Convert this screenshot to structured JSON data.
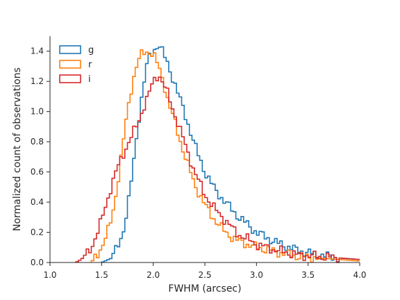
{
  "chart_data": {
    "type": "histogram-step",
    "xlabel": "FWHM (arcsec)",
    "ylabel": "Normalized count of observations",
    "xlim": [
      1.0,
      4.0
    ],
    "ylim": [
      0.0,
      1.5
    ],
    "xticks": [
      "1.0",
      "1.5",
      "2.0",
      "2.5",
      "3.0",
      "3.5",
      "4.0"
    ],
    "yticks": [
      "0.0",
      "0.2",
      "0.4",
      "0.6",
      "0.8",
      "1.0",
      "1.2",
      "1.4"
    ],
    "legend_position": "top-left",
    "grid": false,
    "bin_width": 0.025,
    "series": [
      {
        "name": "g",
        "color": "#1f77b4",
        "x": [
          1.5,
          1.6,
          1.65,
          1.7,
          1.75,
          1.8,
          1.85,
          1.9,
          1.95,
          2.0,
          2.05,
          2.1,
          2.15,
          2.2,
          2.3,
          2.4,
          2.5,
          2.6,
          2.7,
          2.8,
          2.9,
          3.0,
          3.2,
          3.4,
          3.6,
          3.8,
          4.0
        ],
        "y": [
          0.0,
          0.03,
          0.1,
          0.18,
          0.35,
          0.6,
          0.9,
          1.15,
          1.35,
          1.4,
          1.45,
          1.38,
          1.3,
          1.2,
          1.0,
          0.78,
          0.6,
          0.48,
          0.4,
          0.32,
          0.26,
          0.2,
          0.13,
          0.08,
          0.05,
          0.03,
          0.02
        ]
      },
      {
        "name": "r",
        "color": "#ff7f0e",
        "x": [
          1.4,
          1.45,
          1.5,
          1.55,
          1.6,
          1.65,
          1.7,
          1.75,
          1.8,
          1.85,
          1.9,
          1.95,
          2.0,
          2.05,
          2.1,
          2.15,
          2.2,
          2.3,
          2.4,
          2.5,
          2.6,
          2.7,
          2.8,
          3.0,
          3.2,
          3.4,
          3.6,
          3.8,
          4.0
        ],
        "y": [
          0.0,
          0.05,
          0.1,
          0.18,
          0.3,
          0.5,
          0.75,
          1.0,
          1.2,
          1.33,
          1.39,
          1.4,
          1.38,
          1.3,
          1.2,
          1.05,
          0.95,
          0.72,
          0.52,
          0.38,
          0.28,
          0.2,
          0.15,
          0.1,
          0.07,
          0.04,
          0.03,
          0.02,
          0.01
        ]
      },
      {
        "name": "i",
        "color": "#d62728",
        "x": [
          1.25,
          1.3,
          1.35,
          1.4,
          1.45,
          1.5,
          1.55,
          1.6,
          1.65,
          1.7,
          1.75,
          1.8,
          1.85,
          1.9,
          1.95,
          2.0,
          2.05,
          2.1,
          2.15,
          2.2,
          2.25,
          2.3,
          2.4,
          2.5,
          2.6,
          2.7,
          2.8,
          3.0,
          3.2,
          3.4,
          3.6,
          3.8,
          4.0
        ],
        "y": [
          0.0,
          0.02,
          0.05,
          0.1,
          0.18,
          0.28,
          0.4,
          0.52,
          0.62,
          0.7,
          0.78,
          0.85,
          0.92,
          1.02,
          1.1,
          1.2,
          1.25,
          1.18,
          1.1,
          1.0,
          0.9,
          0.8,
          0.6,
          0.45,
          0.35,
          0.28,
          0.2,
          0.12,
          0.08,
          0.05,
          0.04,
          0.03,
          0.02
        ]
      }
    ]
  }
}
